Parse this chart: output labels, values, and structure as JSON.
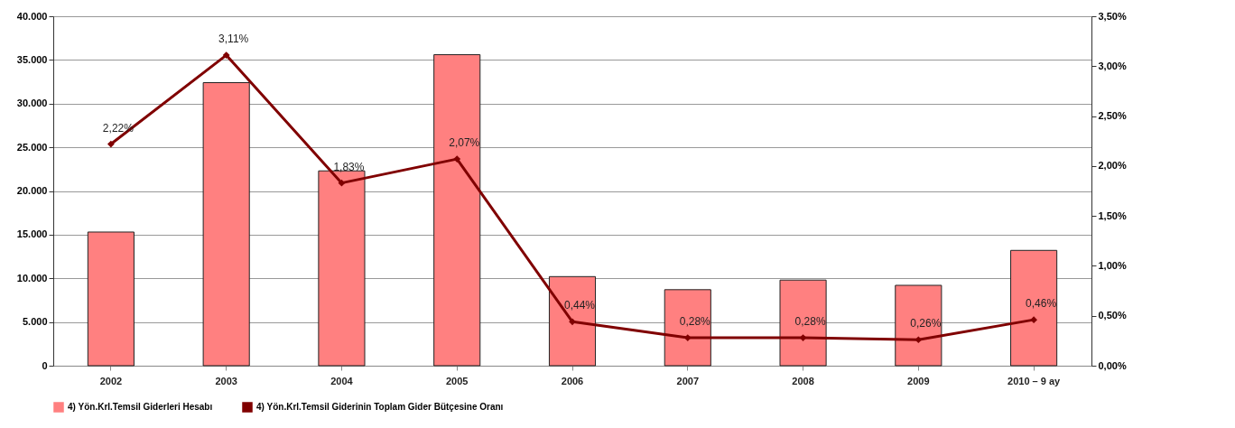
{
  "chart_data": {
    "type": "bar",
    "categories": [
      "2002",
      "2003",
      "2004",
      "2005",
      "2006",
      "2007",
      "2008",
      "2009",
      "2010 – 9 ay"
    ],
    "series": [
      {
        "name": "4) Yön.Krl.Temsil Giderleri Hesabı",
        "color": "#ff8080",
        "values": [
          15300,
          32400,
          22300,
          35600,
          10200,
          8700,
          9800,
          9200,
          13200
        ]
      },
      {
        "name": "4) Yön.Krl.Temsil Giderinin Toplam Gider Bütçesine Oranı",
        "type": "line",
        "axis": "y2",
        "color": "#800000",
        "marker": "diamond",
        "values": [
          2.22,
          3.11,
          1.83,
          2.07,
          0.44,
          0.28,
          0.28,
          0.26,
          0.46
        ],
        "value_labels": [
          "2,22%",
          "3,11%",
          "1,83%",
          "2,07%",
          "0,44%",
          "0,28%",
          "0,28%",
          "0,26%",
          "0,46%"
        ]
      }
    ],
    "ylim": [
      0,
      40000
    ],
    "yticks": [
      {
        "value": 0,
        "label": "0"
      },
      {
        "value": 5000,
        "label": "5.000"
      },
      {
        "value": 10000,
        "label": "10.000"
      },
      {
        "value": 15000,
        "label": "15.000"
      },
      {
        "value": 20000,
        "label": "20.000"
      },
      {
        "value": 25000,
        "label": "25.000"
      },
      {
        "value": 30000,
        "label": "30.000"
      },
      {
        "value": 35000,
        "label": "35.000"
      },
      {
        "value": 40000,
        "label": "40.000"
      }
    ],
    "y2lim": [
      0,
      3.5
    ],
    "y2ticks": [
      {
        "value": 0,
        "label": "0,00%"
      },
      {
        "value": 0.5,
        "label": "0,50%"
      },
      {
        "value": 1,
        "label": "1,00%"
      },
      {
        "value": 1.5,
        "label": "1,50%"
      },
      {
        "value": 2,
        "label": "2,00%"
      },
      {
        "value": 2.5,
        "label": "2,50%"
      },
      {
        "value": 3,
        "label": "3,00%"
      },
      {
        "value": 3.5,
        "label": "3,50%"
      }
    ],
    "grid": "y",
    "legend": "bottom"
  }
}
